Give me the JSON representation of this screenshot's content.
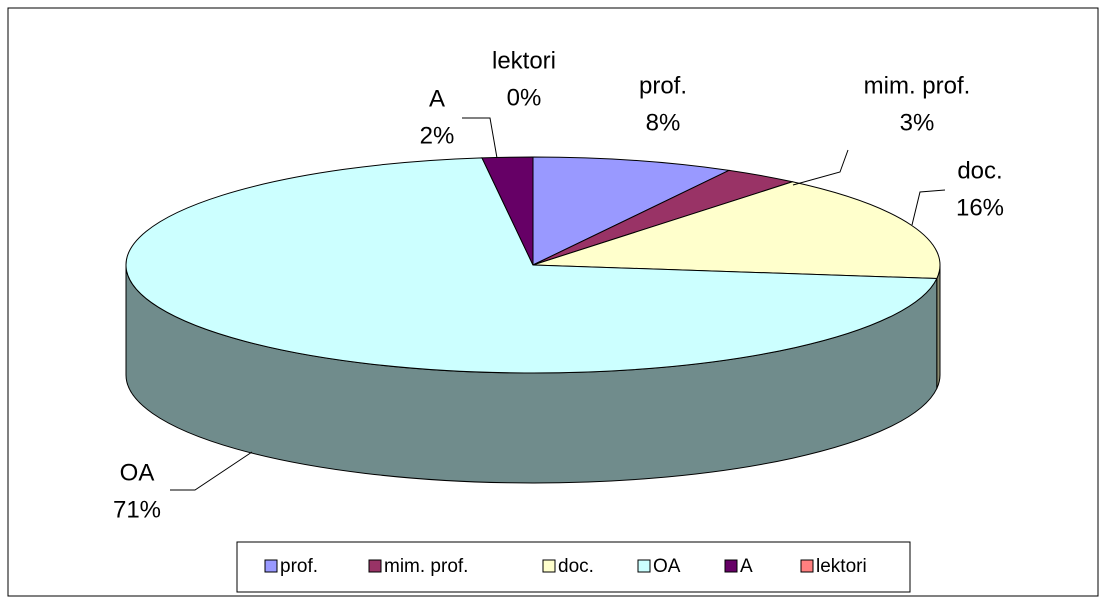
{
  "chart_data": {
    "type": "pie3d",
    "categories": [
      "prof.",
      "mim. prof.",
      "doc.",
      "OA",
      "A",
      "lektori"
    ],
    "values": [
      8,
      3,
      16,
      71,
      2,
      0
    ],
    "value_labels": [
      "8%",
      "3%",
      "16%",
      "71%",
      "2%",
      "0%"
    ],
    "colors": [
      "#9999ff",
      "#993366",
      "#ffffcc",
      "#ccffff",
      "#660066",
      "#ff8080"
    ],
    "legend": "bottom"
  }
}
